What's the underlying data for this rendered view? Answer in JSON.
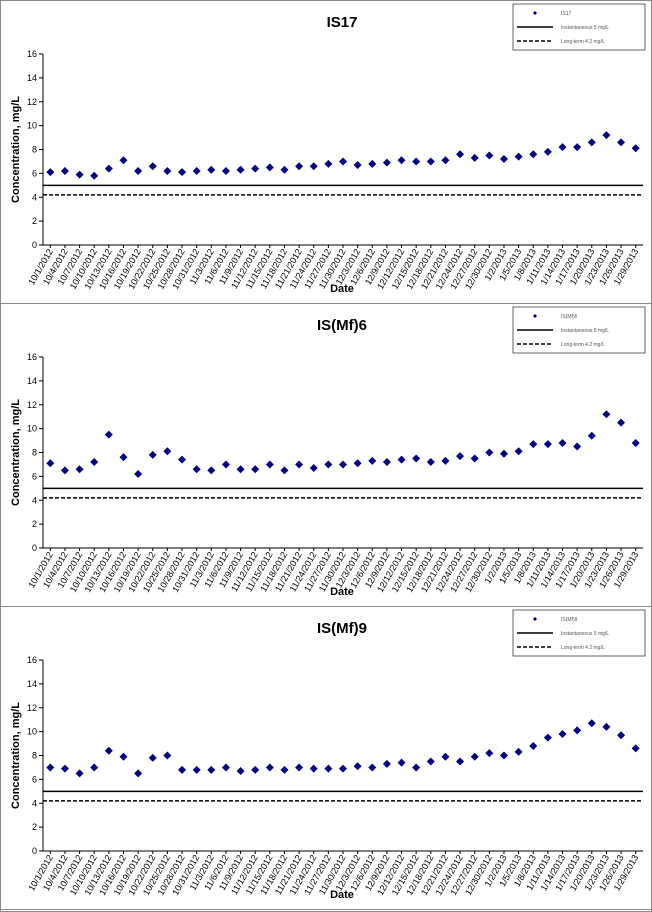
{
  "chart_data": [
    {
      "type": "scatter",
      "title": "IS17",
      "x_label": "Date",
      "y_label": "Concentration, mg/L",
      "categories": [
        "10/1/2012",
        "10/4/2012",
        "10/7/2012",
        "10/10/2012",
        "10/13/2012",
        "10/16/2012",
        "10/19/2012",
        "10/22/2012",
        "10/25/2012",
        "10/28/2012",
        "10/31/2012",
        "11/3/2012",
        "11/6/2012",
        "11/9/2012",
        "11/12/2012",
        "11/15/2012",
        "11/18/2012",
        "11/21/2012",
        "11/24/2012",
        "11/27/2012",
        "11/30/2012",
        "12/3/2012",
        "12/6/2012",
        "12/9/2012",
        "12/12/2012",
        "12/15/2012",
        "12/18/2012",
        "12/21/2012",
        "12/24/2012",
        "12/27/2012",
        "12/30/2012",
        "1/2/2013",
        "1/5/2013",
        "1/8/2013",
        "1/11/2013",
        "1/14/2013",
        "1/17/2013",
        "1/20/2013",
        "1/23/2013",
        "1/26/2013",
        "1/29/2013"
      ],
      "series": [
        {
          "name": "IS17",
          "color": "#000080",
          "values": [
            6.1,
            6.2,
            5.9,
            5.8,
            6.4,
            7.1,
            6.2,
            6.6,
            6.2,
            6.1,
            6.2,
            6.3,
            6.2,
            6.3,
            6.4,
            6.5,
            6.3,
            6.6,
            6.6,
            6.8,
            7.0,
            6.7,
            6.8,
            6.9,
            7.1,
            7.0,
            7.0,
            7.1,
            7.6,
            7.3,
            7.5,
            7.2,
            7.4,
            7.6,
            7.8,
            8.2,
            8.2,
            8.6,
            9.2,
            8.6,
            8.1
          ]
        }
      ],
      "reference_lines": [
        {
          "name": "Instantaneous 5 mg/L",
          "value": 5,
          "style": "solid",
          "color": "#000000"
        },
        {
          "name": "Long-term 4.2 mg/L",
          "value": 4.2,
          "style": "dashed",
          "color": "#000000"
        }
      ],
      "ylim": [
        0,
        16
      ],
      "yticks": [
        0,
        2,
        4,
        6,
        8,
        10,
        12,
        14,
        16
      ],
      "legend": "top-right",
      "grid": false
    },
    {
      "type": "scatter",
      "title": "IS(Mf)6",
      "x_label": "Date",
      "y_label": "Concentration, mg/L",
      "categories": [
        "10/1/2012",
        "10/4/2012",
        "10/7/2012",
        "10/10/2012",
        "10/13/2012",
        "10/16/2012",
        "10/19/2012",
        "10/22/2012",
        "10/25/2012",
        "10/28/2012",
        "10/31/2012",
        "11/3/2012",
        "11/6/2012",
        "11/9/2012",
        "11/12/2012",
        "11/15/2012",
        "11/18/2012",
        "11/21/2012",
        "11/24/2012",
        "11/27/2012",
        "11/30/2012",
        "12/3/2012",
        "12/6/2012",
        "12/9/2012",
        "12/12/2012",
        "12/15/2012",
        "12/18/2012",
        "12/21/2012",
        "12/24/2012",
        "12/27/2012",
        "12/30/2012",
        "1/2/2013",
        "1/5/2013",
        "1/8/2013",
        "1/11/2013",
        "1/14/2013",
        "1/17/2013",
        "1/20/2013",
        "1/23/2013",
        "1/26/2013",
        "1/29/2013"
      ],
      "series": [
        {
          "name": "IS(Mf)6",
          "color": "#000080",
          "values": [
            7.1,
            6.5,
            6.6,
            7.2,
            9.5,
            7.6,
            6.2,
            7.8,
            8.1,
            7.4,
            6.6,
            6.5,
            7.0,
            6.6,
            6.6,
            7.0,
            6.5,
            7.0,
            6.7,
            7.0,
            7.0,
            7.1,
            7.3,
            7.2,
            7.4,
            7.5,
            7.2,
            7.3,
            7.7,
            7.5,
            8.0,
            7.9,
            8.1,
            8.7,
            8.7,
            8.8,
            8.5,
            9.4,
            11.2,
            10.5,
            8.8
          ]
        }
      ],
      "reference_lines": [
        {
          "name": "Instantaneous 5 mg/L",
          "value": 5,
          "style": "solid",
          "color": "#000000"
        },
        {
          "name": "Long-term 4.2 mg/L",
          "value": 4.2,
          "style": "dashed",
          "color": "#000000"
        }
      ],
      "ylim": [
        0,
        16
      ],
      "yticks": [
        0,
        2,
        4,
        6,
        8,
        10,
        12,
        14,
        16
      ],
      "legend": "top-right",
      "grid": false
    },
    {
      "type": "scatter",
      "title": "IS(Mf)9",
      "x_label": "Date",
      "y_label": "Concentration, mg/L",
      "categories": [
        "10/1/2012",
        "10/4/2012",
        "10/7/2012",
        "10/10/2012",
        "10/13/2012",
        "10/16/2012",
        "10/19/2012",
        "10/22/2012",
        "10/25/2012",
        "10/28/2012",
        "10/31/2012",
        "11/3/2012",
        "11/6/2012",
        "11/9/2012",
        "11/12/2012",
        "11/15/2012",
        "11/18/2012",
        "11/21/2012",
        "11/24/2012",
        "11/27/2012",
        "11/30/2012",
        "12/3/2012",
        "12/6/2012",
        "12/9/2012",
        "12/12/2012",
        "12/15/2012",
        "12/18/2012",
        "12/21/2012",
        "12/24/2012",
        "12/27/2012",
        "12/30/2012",
        "1/2/2013",
        "1/5/2013",
        "1/8/2013",
        "1/11/2013",
        "1/14/2013",
        "1/17/2013",
        "1/20/2013",
        "1/23/2013",
        "1/26/2013",
        "1/29/2013"
      ],
      "series": [
        {
          "name": "IS(Mf)9",
          "color": "#000080",
          "values": [
            7.0,
            6.9,
            6.5,
            7.0,
            8.4,
            7.9,
            6.5,
            7.8,
            8.0,
            6.8,
            6.8,
            6.8,
            7.0,
            6.7,
            6.8,
            7.0,
            6.8,
            7.0,
            6.9,
            6.9,
            6.9,
            7.1,
            7.0,
            7.3,
            7.4,
            7.0,
            7.5,
            7.9,
            7.5,
            7.9,
            8.2,
            8.0,
            8.3,
            8.8,
            9.5,
            9.8,
            10.1,
            10.7,
            10.4,
            9.7,
            8.6
          ]
        }
      ],
      "reference_lines": [
        {
          "name": "Instantaneous 5 mg/L",
          "value": 5,
          "style": "solid",
          "color": "#000000"
        },
        {
          "name": "Long-term 4.2 mg/L",
          "value": 4.2,
          "style": "dashed",
          "color": "#000000"
        }
      ],
      "ylim": [
        0,
        16
      ],
      "yticks": [
        0,
        2,
        4,
        6,
        8,
        10,
        12,
        14,
        16
      ],
      "legend": "top-right",
      "grid": false
    }
  ]
}
